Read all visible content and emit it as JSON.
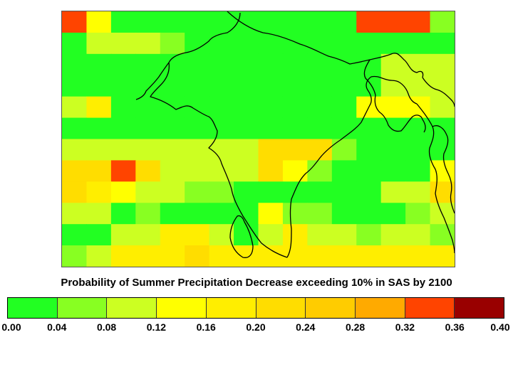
{
  "title": "Probability of Summer Precipitation Decrease exceeding 10% in SAS by 2100",
  "colorbar": {
    "colors": [
      "#22ff22",
      "#88ff22",
      "#ccff22",
      "#ffff00",
      "#ffee00",
      "#ffdd00",
      "#ffcc00",
      "#ffaa00",
      "#ff4400",
      "#990000"
    ],
    "tick_labels": [
      "0.00",
      "0.04",
      "0.08",
      "0.12",
      "0.16",
      "0.20",
      "0.24",
      "0.28",
      "0.32",
      "0.36",
      "0.40"
    ]
  },
  "grid_values": [
    [
      0.34,
      0.13,
      0.02,
      0.02,
      0.02,
      0.02,
      0.02,
      0.02,
      0.02,
      0.02,
      0.02,
      0.02,
      0.34,
      0.34,
      0.34,
      0.06
    ],
    [
      0.02,
      0.08,
      0.08,
      0.08,
      0.06,
      0.02,
      0.02,
      0.02,
      0.02,
      0.02,
      0.02,
      0.02,
      0.02,
      0.02,
      0.02,
      0.02
    ],
    [
      0.02,
      0.02,
      0.02,
      0.02,
      0.02,
      0.02,
      0.02,
      0.02,
      0.02,
      0.02,
      0.02,
      0.02,
      0.02,
      0.08,
      0.1,
      0.1
    ],
    [
      0.02,
      0.02,
      0.02,
      0.02,
      0.02,
      0.02,
      0.02,
      0.02,
      0.02,
      0.02,
      0.02,
      0.02,
      0.02,
      0.1,
      0.1,
      0.1
    ],
    [
      0.08,
      0.18,
      0.02,
      0.02,
      0.02,
      0.02,
      0.02,
      0.02,
      0.02,
      0.02,
      0.02,
      0.02,
      0.13,
      0.13,
      0.13,
      0.1
    ],
    [
      0.02,
      0.02,
      0.02,
      0.02,
      0.02,
      0.02,
      0.02,
      0.02,
      0.02,
      0.02,
      0.02,
      0.02,
      0.02,
      0.02,
      0.02,
      0.02
    ],
    [
      0.1,
      0.08,
      0.08,
      0.08,
      0.08,
      0.08,
      0.08,
      0.1,
      0.2,
      0.2,
      0.2,
      0.06,
      0.02,
      0.02,
      0.02,
      0.02
    ],
    [
      0.2,
      0.22,
      0.34,
      0.2,
      0.08,
      0.08,
      0.08,
      0.1,
      0.2,
      0.13,
      0.06,
      0.02,
      0.02,
      0.02,
      0.02,
      0.13
    ],
    [
      0.2,
      0.18,
      0.14,
      0.1,
      0.08,
      0.06,
      0.06,
      0.02,
      0.02,
      0.02,
      0.02,
      0.02,
      0.02,
      0.08,
      0.1,
      0.2
    ],
    [
      0.08,
      0.08,
      0.02,
      0.06,
      0.02,
      0.02,
      0.02,
      0.02,
      0.14,
      0.06,
      0.06,
      0.02,
      0.02,
      0.02,
      0.06,
      0.1
    ],
    [
      0.02,
      0.02,
      0.08,
      0.08,
      0.16,
      0.16,
      0.1,
      0.02,
      0.08,
      0.16,
      0.1,
      0.1,
      0.06,
      0.08,
      0.1,
      0.06
    ],
    [
      0.06,
      0.1,
      0.16,
      0.16,
      0.16,
      0.22,
      0.18,
      0.18,
      0.16,
      0.18,
      0.18,
      0.16,
      0.16,
      0.16,
      0.18,
      0.18
    ]
  ]
}
